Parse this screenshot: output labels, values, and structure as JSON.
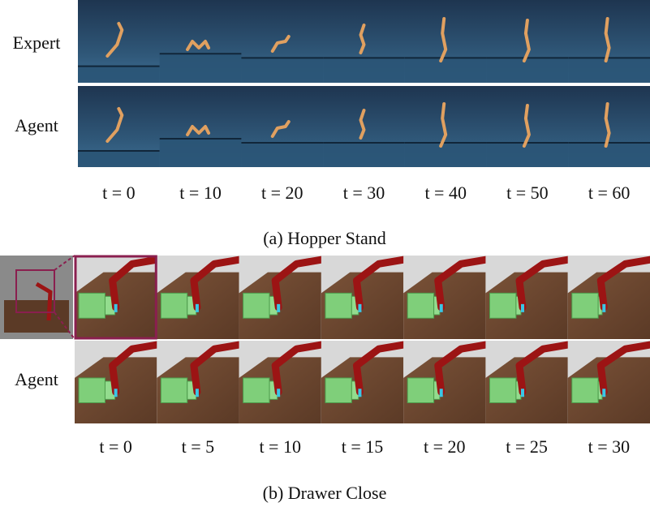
{
  "panels": [
    {
      "row_labels": [
        "Expert",
        "Agent"
      ],
      "time_labels": [
        "t = 0",
        "t = 10",
        "t = 20",
        "t = 30",
        "t = 40",
        "t = 50",
        "t = 60"
      ],
      "caption": "(a) Hopper Stand"
    },
    {
      "row_labels": [
        "Agent"
      ],
      "time_labels": [
        "t = 0",
        "t = 5",
        "t = 10",
        "t = 15",
        "t = 20",
        "t = 25",
        "t = 30"
      ],
      "caption": "(b) Drawer Close"
    }
  ]
}
